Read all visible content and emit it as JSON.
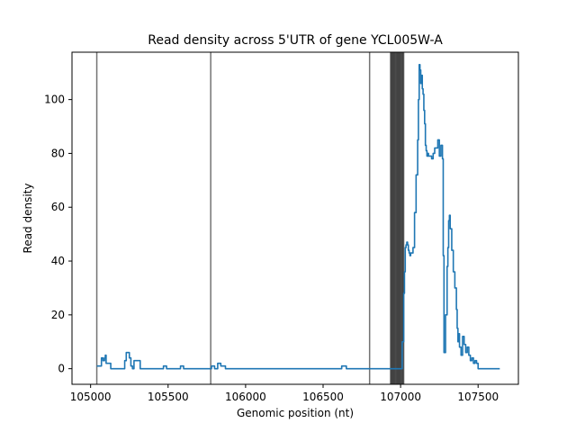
{
  "chart_data": {
    "type": "line",
    "title": "Read density across 5'UTR of gene YCL005W-A",
    "xlabel": "Genomic position (nt)",
    "ylabel": "Read density",
    "xlim": [
      104880,
      107760
    ],
    "ylim": [
      -5.8,
      117.6
    ],
    "xticks": [
      105000,
      105500,
      106000,
      106500,
      107000,
      107500
    ],
    "yticks": [
      0,
      20,
      40,
      60,
      80,
      100
    ],
    "grid": false,
    "legend": "none",
    "vlines": [
      105040,
      105775,
      106800,
      106935,
      106940,
      106945,
      106950,
      106955,
      106960,
      106965,
      106970,
      106975,
      106980,
      106985,
      106990,
      106995,
      107000,
      107005,
      107010,
      107015,
      107020
    ],
    "series": [
      {
        "color": "#1f77b4",
        "x": [
          105040,
          105060,
          105070,
          105080,
          105090,
          105095,
          105100,
          105110,
          105130,
          105140,
          105150,
          105160,
          105220,
          105230,
          105240,
          105250,
          105260,
          105270,
          105280,
          105300,
          105320,
          105330,
          105360,
          105440,
          105470,
          105490,
          105560,
          105580,
          105600,
          105620,
          105650,
          105760,
          105780,
          105800,
          105820,
          105840,
          105870,
          106600,
          106620,
          106650,
          107000,
          107010,
          107020,
          107025,
          107030,
          107035,
          107040,
          107045,
          107050,
          107055,
          107060,
          107065,
          107080,
          107090,
          107100,
          107110,
          107115,
          107120,
          107125,
          107130,
          107135,
          107140,
          107145,
          107150,
          107155,
          107160,
          107165,
          107170,
          107175,
          107180,
          107185,
          107190,
          107200,
          107210,
          107220,
          107240,
          107250,
          107260,
          107270,
          107275,
          107280,
          107290,
          107300,
          107305,
          107310,
          107315,
          107320,
          107330,
          107340,
          107350,
          107360,
          107365,
          107370,
          107375,
          107380,
          107390,
          107400,
          107410,
          107420,
          107430,
          107440,
          107450,
          107460,
          107470,
          107480,
          107490,
          107500,
          107510,
          107520,
          107540,
          107560,
          107580,
          107600,
          107620,
          107640
        ],
        "y": [
          1,
          1,
          4,
          3,
          4,
          5,
          2,
          2,
          0,
          0,
          0,
          0,
          3,
          6,
          6,
          4,
          1,
          0,
          3,
          3,
          0,
          0,
          0,
          0,
          1,
          0,
          0,
          1,
          0,
          0,
          0,
          0,
          1,
          0,
          2,
          1,
          0,
          0,
          1,
          0,
          0,
          10,
          28,
          36,
          45,
          46,
          47,
          46,
          44,
          43,
          42,
          43,
          45,
          58,
          72,
          85,
          100,
          113,
          111,
          106,
          109,
          104,
          102,
          96,
          91,
          83,
          81,
          79,
          80,
          79,
          79,
          79,
          78,
          80,
          82,
          85,
          79,
          83,
          78,
          42,
          6,
          20,
          38,
          45,
          55,
          57,
          52,
          44,
          36,
          30,
          22,
          15,
          10,
          13,
          8,
          5,
          12,
          9,
          6,
          8,
          5,
          3,
          4,
          2,
          3,
          2,
          0,
          0,
          0,
          0,
          0,
          0,
          0,
          0,
          0
        ]
      }
    ]
  }
}
